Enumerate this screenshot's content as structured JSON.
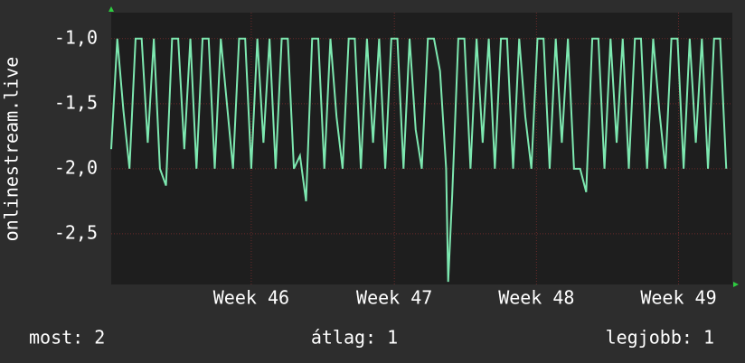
{
  "chart_data": {
    "type": "line",
    "y_label": "onlinestream.live",
    "ylim": [
      -2.89,
      -0.8
    ],
    "yticks": [
      {
        "value": -1,
        "label": "-1,0"
      },
      {
        "value": -1.5,
        "label": "-1,5"
      },
      {
        "value": -2,
        "label": "-2,0"
      },
      {
        "value": -2.5,
        "label": "-2,5"
      }
    ],
    "xlim": [
      0,
      30.6
    ],
    "xticks": [
      {
        "value": 6.9,
        "label": "Week 46"
      },
      {
        "value": 13.95,
        "label": "Week 47"
      },
      {
        "value": 20.95,
        "label": "Week 48"
      },
      {
        "value": 27.95,
        "label": "Week 49"
      }
    ],
    "grid": true,
    "x": [
      0,
      0.3,
      0.6,
      0.9,
      1.2,
      1.5,
      1.8,
      2.1,
      2.4,
      2.7,
      3,
      3.3,
      3.6,
      3.9,
      4.2,
      4.5,
      4.8,
      5.1,
      5.4,
      5.7,
      6,
      6.3,
      6.6,
      6.9,
      7.2,
      7.5,
      7.8,
      8.1,
      8.4,
      8.7,
      9,
      9.3,
      9.6,
      9.9,
      10.2,
      10.5,
      10.8,
      11.1,
      11.4,
      11.7,
      12,
      12.3,
      12.6,
      12.9,
      13.2,
      13.5,
      13.8,
      14.1,
      14.4,
      14.7,
      15,
      15.3,
      15.6,
      15.9,
      16.2,
      16.5,
      16.6,
      16.8,
      17.1,
      17.4,
      17.7,
      18,
      18.3,
      18.6,
      18.9,
      19.2,
      19.5,
      19.8,
      20.1,
      20.4,
      20.7,
      21,
      21.3,
      21.6,
      21.9,
      22.2,
      22.5,
      22.8,
      23.1,
      23.4,
      23.7,
      24,
      24.3,
      24.6,
      24.9,
      25.2,
      25.5,
      25.8,
      26.1,
      26.4,
      26.7,
      27,
      27.3,
      27.6,
      27.9,
      28.2,
      28.5,
      28.8,
      29.1,
      29.4,
      29.7,
      30,
      30.3
    ],
    "series": [
      {
        "name": "onlinestream.live",
        "color": "#7de8b0",
        "values": [
          -1.85,
          -1.0,
          -1.55,
          -2.0,
          -1.0,
          -1.0,
          -1.8,
          -1.0,
          -2.0,
          -2.13,
          -1.0,
          -1.0,
          -1.85,
          -1.0,
          -2.0,
          -1.0,
          -1.0,
          -2.0,
          -1.0,
          -1.5,
          -2.0,
          -1.0,
          -1.0,
          -2.0,
          -1.0,
          -1.8,
          -1.0,
          -2.0,
          -1.0,
          -1.0,
          -2.0,
          -1.9,
          -2.25,
          -1.0,
          -1.0,
          -2.0,
          -1.0,
          -1.6,
          -2.0,
          -1.0,
          -1.0,
          -2.0,
          -1.0,
          -1.8,
          -1.0,
          -2.0,
          -1.0,
          -1.0,
          -2.0,
          -1.0,
          -1.7,
          -2.0,
          -1.0,
          -1.0,
          -1.25,
          -2.0,
          -2.87,
          -2.2,
          -1.0,
          -1.0,
          -2.0,
          -1.0,
          -1.8,
          -1.0,
          -2.0,
          -1.0,
          -1.0,
          -2.0,
          -1.0,
          -1.6,
          -2.0,
          -1.0,
          -1.0,
          -2.0,
          -1.0,
          -1.8,
          -1.0,
          -2.0,
          -2.0,
          -2.18,
          -1.0,
          -1.0,
          -2.0,
          -1.0,
          -1.8,
          -1.0,
          -2.0,
          -1.0,
          -1.0,
          -2.0,
          -1.0,
          -1.55,
          -2.0,
          -1.0,
          -1.0,
          -2.0,
          -1.0,
          -1.8,
          -1.0,
          -2.0,
          -1.0,
          -1.0,
          -2.0
        ]
      }
    ],
    "footer": [
      "most: 2",
      "átlag: 1",
      "legjobb: 1"
    ]
  }
}
